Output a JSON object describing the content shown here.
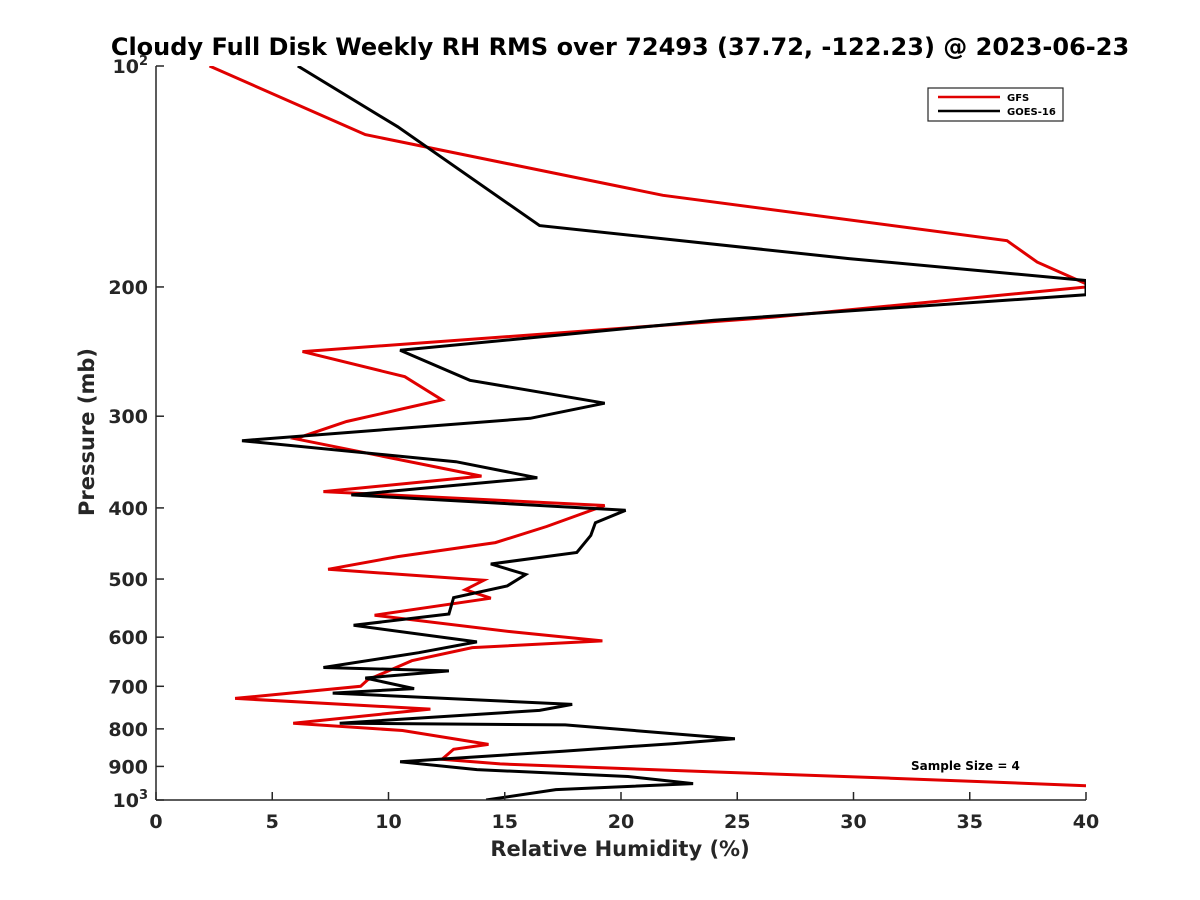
{
  "chart_data": {
    "type": "line",
    "title": "Cloudy Full Disk Weekly RH RMS over 72493 (37.72, -122.23) @ 2023-06-23",
    "xlabel": "Relative Humidity (%)",
    "ylabel": "Pressure (mb)",
    "xlim": [
      0,
      40
    ],
    "ylim": [
      100,
      1000
    ],
    "y_scale": "log",
    "y_reversed": true,
    "grid": false,
    "legend_position": "top-right",
    "x_ticks": [
      0,
      5,
      10,
      15,
      20,
      25,
      30,
      35,
      40
    ],
    "y_ticks": [
      {
        "value": 100,
        "label": "10",
        "sup": "2"
      },
      {
        "value": 200,
        "label": "200",
        "sup": ""
      },
      {
        "value": 300,
        "label": "300",
        "sup": ""
      },
      {
        "value": 400,
        "label": "400",
        "sup": ""
      },
      {
        "value": 500,
        "label": "500",
        "sup": ""
      },
      {
        "value": 600,
        "label": "600",
        "sup": ""
      },
      {
        "value": 700,
        "label": "700",
        "sup": ""
      },
      {
        "value": 800,
        "label": "800",
        "sup": ""
      },
      {
        "value": 900,
        "label": "900",
        "sup": ""
      },
      {
        "value": 1000,
        "label": "10",
        "sup": "3"
      }
    ],
    "annotation": "Sample Size = 4",
    "series": [
      {
        "name": "GFS",
        "color": "#e00000",
        "points": [
          [
            2.3,
            100
          ],
          [
            9.0,
            124
          ],
          [
            21.8,
            150
          ],
          [
            36.6,
            173
          ],
          [
            37.9,
            185
          ],
          [
            40.0,
            198
          ],
          [
            40.0,
            200
          ],
          [
            26.5,
            220
          ],
          [
            6.3,
            245
          ],
          [
            10.7,
            265
          ],
          [
            12.3,
            285
          ],
          [
            8.2,
            305
          ],
          [
            6.0,
            322
          ],
          [
            14.0,
            362
          ],
          [
            7.2,
            380
          ],
          [
            19.3,
            397
          ],
          [
            16.8,
            424
          ],
          [
            14.6,
            446
          ],
          [
            10.4,
            466
          ],
          [
            7.4,
            485
          ],
          [
            14.1,
            502
          ],
          [
            13.3,
            517
          ],
          [
            14.4,
            531
          ],
          [
            9.4,
            560
          ],
          [
            15.3,
            590
          ],
          [
            19.2,
            607
          ],
          [
            13.6,
            620
          ],
          [
            11.0,
            646
          ],
          [
            9.1,
            686
          ],
          [
            8.8,
            700
          ],
          [
            3.4,
            727
          ],
          [
            11.8,
            752
          ],
          [
            5.9,
            786
          ],
          [
            10.6,
            804
          ],
          [
            14.3,
            840
          ],
          [
            12.8,
            853
          ],
          [
            12.3,
            880
          ],
          [
            14.8,
            893
          ],
          [
            24.1,
            916
          ],
          [
            31.6,
            934
          ],
          [
            40.0,
            956
          ]
        ]
      },
      {
        "name": "GOES-16",
        "color": "#000000",
        "points": [
          [
            6.1,
            100
          ],
          [
            10.4,
            121
          ],
          [
            16.5,
            165
          ],
          [
            29.8,
            183
          ],
          [
            40.0,
            196
          ],
          [
            40.0,
            205
          ],
          [
            24.0,
            222
          ],
          [
            10.5,
            244
          ],
          [
            13.5,
            268
          ],
          [
            19.3,
            288
          ],
          [
            16.1,
            302
          ],
          [
            3.7,
            324
          ],
          [
            12.9,
            346
          ],
          [
            16.4,
            364
          ],
          [
            8.4,
            384
          ],
          [
            20.2,
            403
          ],
          [
            18.9,
            419
          ],
          [
            18.7,
            436
          ],
          [
            18.1,
            460
          ],
          [
            14.4,
            477
          ],
          [
            15.9,
            493
          ],
          [
            15.1,
            511
          ],
          [
            12.8,
            530
          ],
          [
            12.6,
            558
          ],
          [
            8.5,
            578
          ],
          [
            13.8,
            609
          ],
          [
            11.3,
            630
          ],
          [
            7.2,
            660
          ],
          [
            12.6,
            667
          ],
          [
            9.0,
            682
          ],
          [
            11.1,
            705
          ],
          [
            7.6,
            715
          ],
          [
            17.9,
            741
          ],
          [
            16.5,
            755
          ],
          [
            7.9,
            786
          ],
          [
            17.6,
            790
          ],
          [
            24.9,
            825
          ],
          [
            22.2,
            838
          ],
          [
            17.5,
            858
          ],
          [
            10.5,
            887
          ],
          [
            13.8,
            909
          ],
          [
            20.3,
            929
          ],
          [
            23.1,
            950
          ],
          [
            17.2,
            968
          ],
          [
            14.2,
            1000
          ]
        ]
      }
    ]
  }
}
